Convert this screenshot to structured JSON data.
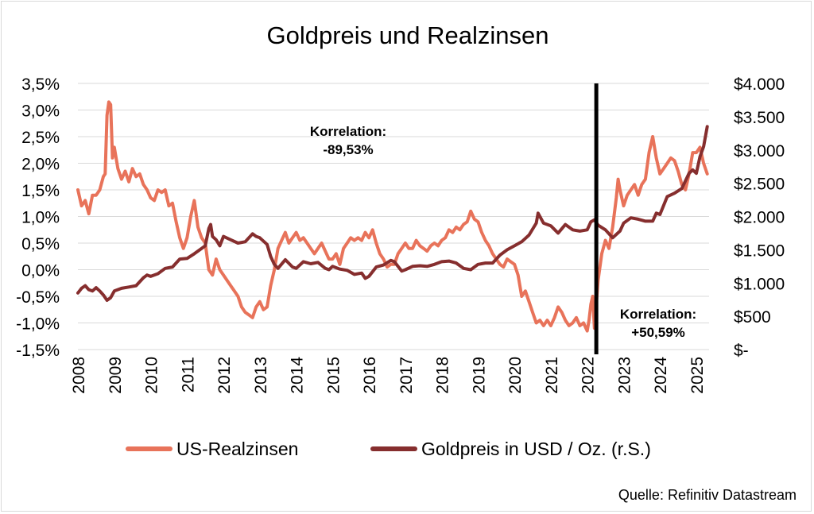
{
  "chart_data": {
    "type": "line",
    "title": "Goldpreis und Realzinsen",
    "source": "Quelle: Refinitiv Datastream",
    "x_ticks": [
      "2008",
      "2009",
      "2010",
      "2011",
      "2012",
      "2013",
      "2014",
      "2015",
      "2016",
      "2017",
      "2018",
      "2019",
      "2020",
      "2021",
      "2022",
      "2023",
      "2024",
      "2025"
    ],
    "x_range": [
      2008.0,
      2025.35
    ],
    "y_left": {
      "ticks": [
        "3,5%",
        "3,0%",
        "2,5%",
        "2,0%",
        "1,5%",
        "1,0%",
        "0,5%",
        "0,0%",
        "-0,5%",
        "-1,0%",
        "-1,5%"
      ],
      "range": [
        -1.5,
        3.5
      ],
      "unit": "%"
    },
    "y_right": {
      "ticks": [
        "$4.000",
        "$3.500",
        "$3.000",
        "$2.500",
        "$2.000",
        "$1.500",
        "$1.000",
        "$500",
        "$-"
      ],
      "range": [
        0,
        4000
      ],
      "unit": "USD"
    },
    "grid": "horizontal",
    "legend_position": "bottom",
    "vertical_marker": {
      "x": 2022.25
    },
    "annotations": [
      {
        "line1": "Korrelation:",
        "line2": "-89,53%"
      },
      {
        "line1": "Korrelation:",
        "line2": "+50,59%"
      }
    ],
    "series": [
      {
        "name": "US-Realzinsen",
        "axis": "left",
        "color": "#e8735a",
        "points": [
          [
            2008.0,
            1.5
          ],
          [
            2008.1,
            1.2
          ],
          [
            2008.2,
            1.3
          ],
          [
            2008.3,
            1.05
          ],
          [
            2008.4,
            1.4
          ],
          [
            2008.5,
            1.4
          ],
          [
            2008.6,
            1.5
          ],
          [
            2008.7,
            1.75
          ],
          [
            2008.75,
            1.8
          ],
          [
            2008.8,
            2.9
          ],
          [
            2008.85,
            3.15
          ],
          [
            2008.9,
            3.1
          ],
          [
            2008.95,
            2.1
          ],
          [
            2009.0,
            2.3
          ],
          [
            2009.1,
            1.9
          ],
          [
            2009.2,
            1.7
          ],
          [
            2009.3,
            1.85
          ],
          [
            2009.4,
            1.65
          ],
          [
            2009.5,
            1.9
          ],
          [
            2009.6,
            1.75
          ],
          [
            2009.7,
            1.8
          ],
          [
            2009.8,
            1.6
          ],
          [
            2009.9,
            1.5
          ],
          [
            2010.0,
            1.35
          ],
          [
            2010.1,
            1.3
          ],
          [
            2010.2,
            1.5
          ],
          [
            2010.3,
            1.45
          ],
          [
            2010.4,
            1.5
          ],
          [
            2010.5,
            1.2
          ],
          [
            2010.6,
            1.25
          ],
          [
            2010.7,
            0.9
          ],
          [
            2010.8,
            0.6
          ],
          [
            2010.9,
            0.4
          ],
          [
            2011.0,
            0.6
          ],
          [
            2011.1,
            1.0
          ],
          [
            2011.2,
            1.3
          ],
          [
            2011.3,
            0.8
          ],
          [
            2011.4,
            0.6
          ],
          [
            2011.5,
            0.5
          ],
          [
            2011.6,
            0.0
          ],
          [
            2011.7,
            -0.1
          ],
          [
            2011.8,
            0.2
          ],
          [
            2011.9,
            0.0
          ],
          [
            2012.0,
            -0.1
          ],
          [
            2012.1,
            -0.2
          ],
          [
            2012.2,
            -0.3
          ],
          [
            2012.3,
            -0.4
          ],
          [
            2012.4,
            -0.5
          ],
          [
            2012.5,
            -0.7
          ],
          [
            2012.6,
            -0.8
          ],
          [
            2012.7,
            -0.85
          ],
          [
            2012.8,
            -0.9
          ],
          [
            2012.9,
            -0.7
          ],
          [
            2013.0,
            -0.6
          ],
          [
            2013.1,
            -0.75
          ],
          [
            2013.2,
            -0.7
          ],
          [
            2013.3,
            -0.3
          ],
          [
            2013.4,
            0.0
          ],
          [
            2013.5,
            0.4
          ],
          [
            2013.6,
            0.55
          ],
          [
            2013.7,
            0.7
          ],
          [
            2013.8,
            0.5
          ],
          [
            2013.9,
            0.6
          ],
          [
            2014.0,
            0.7
          ],
          [
            2014.1,
            0.55
          ],
          [
            2014.2,
            0.6
          ],
          [
            2014.3,
            0.5
          ],
          [
            2014.4,
            0.4
          ],
          [
            2014.5,
            0.3
          ],
          [
            2014.6,
            0.4
          ],
          [
            2014.7,
            0.5
          ],
          [
            2014.8,
            0.35
          ],
          [
            2014.9,
            0.2
          ],
          [
            2015.0,
            0.2
          ],
          [
            2015.1,
            0.3
          ],
          [
            2015.2,
            0.1
          ],
          [
            2015.3,
            0.4
          ],
          [
            2015.4,
            0.5
          ],
          [
            2015.5,
            0.6
          ],
          [
            2015.6,
            0.55
          ],
          [
            2015.7,
            0.6
          ],
          [
            2015.8,
            0.55
          ],
          [
            2015.9,
            0.7
          ],
          [
            2016.0,
            0.6
          ],
          [
            2016.1,
            0.75
          ],
          [
            2016.2,
            0.5
          ],
          [
            2016.3,
            0.3
          ],
          [
            2016.4,
            0.2
          ],
          [
            2016.5,
            0.05
          ],
          [
            2016.6,
            0.1
          ],
          [
            2016.7,
            0.1
          ],
          [
            2016.8,
            0.3
          ],
          [
            2016.9,
            0.4
          ],
          [
            2017.0,
            0.5
          ],
          [
            2017.1,
            0.4
          ],
          [
            2017.2,
            0.4
          ],
          [
            2017.3,
            0.55
          ],
          [
            2017.4,
            0.45
          ],
          [
            2017.5,
            0.4
          ],
          [
            2017.6,
            0.35
          ],
          [
            2017.7,
            0.45
          ],
          [
            2017.8,
            0.5
          ],
          [
            2017.9,
            0.45
          ],
          [
            2018.0,
            0.55
          ],
          [
            2018.1,
            0.6
          ],
          [
            2018.2,
            0.75
          ],
          [
            2018.3,
            0.7
          ],
          [
            2018.4,
            0.8
          ],
          [
            2018.5,
            0.75
          ],
          [
            2018.6,
            0.85
          ],
          [
            2018.7,
            0.9
          ],
          [
            2018.8,
            1.1
          ],
          [
            2018.9,
            0.95
          ],
          [
            2019.0,
            0.9
          ],
          [
            2019.1,
            0.7
          ],
          [
            2019.2,
            0.55
          ],
          [
            2019.3,
            0.45
          ],
          [
            2019.4,
            0.3
          ],
          [
            2019.5,
            0.2
          ],
          [
            2019.6,
            0.1
          ],
          [
            2019.7,
            0.05
          ],
          [
            2019.8,
            0.2
          ],
          [
            2019.9,
            0.15
          ],
          [
            2020.0,
            0.1
          ],
          [
            2020.1,
            -0.1
          ],
          [
            2020.2,
            -0.5
          ],
          [
            2020.3,
            -0.4
          ],
          [
            2020.4,
            -0.6
          ],
          [
            2020.5,
            -0.8
          ],
          [
            2020.6,
            -1.0
          ],
          [
            2020.7,
            -0.95
          ],
          [
            2020.8,
            -1.05
          ],
          [
            2020.9,
            -0.95
          ],
          [
            2021.0,
            -1.05
          ],
          [
            2021.1,
            -0.9
          ],
          [
            2021.2,
            -0.7
          ],
          [
            2021.3,
            -0.8
          ],
          [
            2021.4,
            -0.95
          ],
          [
            2021.5,
            -1.05
          ],
          [
            2021.6,
            -1.0
          ],
          [
            2021.7,
            -0.9
          ],
          [
            2021.8,
            -1.05
          ],
          [
            2021.9,
            -1.0
          ],
          [
            2022.0,
            -1.15
          ],
          [
            2022.05,
            -0.95
          ],
          [
            2022.1,
            -0.65
          ],
          [
            2022.15,
            -0.5
          ],
          [
            2022.2,
            -1.1
          ],
          [
            2022.3,
            -0.2
          ],
          [
            2022.4,
            0.3
          ],
          [
            2022.5,
            0.55
          ],
          [
            2022.6,
            0.4
          ],
          [
            2022.7,
            0.8
          ],
          [
            2022.8,
            1.35
          ],
          [
            2022.85,
            1.7
          ],
          [
            2022.9,
            1.5
          ],
          [
            2023.0,
            1.2
          ],
          [
            2023.1,
            1.4
          ],
          [
            2023.2,
            1.5
          ],
          [
            2023.3,
            1.6
          ],
          [
            2023.4,
            1.4
          ],
          [
            2023.5,
            1.6
          ],
          [
            2023.6,
            1.7
          ],
          [
            2023.7,
            2.2
          ],
          [
            2023.8,
            2.5
          ],
          [
            2023.9,
            2.1
          ],
          [
            2024.0,
            1.8
          ],
          [
            2024.1,
            1.9
          ],
          [
            2024.2,
            2.0
          ],
          [
            2024.3,
            2.1
          ],
          [
            2024.4,
            2.05
          ],
          [
            2024.5,
            1.85
          ],
          [
            2024.6,
            1.6
          ],
          [
            2024.7,
            1.5
          ],
          [
            2024.8,
            1.8
          ],
          [
            2024.9,
            2.2
          ],
          [
            2025.0,
            2.2
          ],
          [
            2025.1,
            2.3
          ],
          [
            2025.2,
            2.0
          ],
          [
            2025.3,
            1.8
          ]
        ]
      },
      {
        "name": "Goldpreis in USD / Oz. (r.S.)",
        "axis": "right",
        "color": "#862e2e",
        "points": [
          [
            2008.0,
            850
          ],
          [
            2008.1,
            920
          ],
          [
            2008.2,
            960
          ],
          [
            2008.3,
            900
          ],
          [
            2008.4,
            880
          ],
          [
            2008.5,
            930
          ],
          [
            2008.6,
            880
          ],
          [
            2008.7,
            820
          ],
          [
            2008.8,
            740
          ],
          [
            2008.9,
            780
          ],
          [
            2009.0,
            880
          ],
          [
            2009.2,
            920
          ],
          [
            2009.4,
            940
          ],
          [
            2009.6,
            960
          ],
          [
            2009.8,
            1080
          ],
          [
            2009.9,
            1120
          ],
          [
            2010.0,
            1100
          ],
          [
            2010.2,
            1140
          ],
          [
            2010.4,
            1220
          ],
          [
            2010.6,
            1240
          ],
          [
            2010.8,
            1360
          ],
          [
            2011.0,
            1370
          ],
          [
            2011.2,
            1440
          ],
          [
            2011.4,
            1520
          ],
          [
            2011.5,
            1560
          ],
          [
            2011.6,
            1820
          ],
          [
            2011.65,
            1880
          ],
          [
            2011.7,
            1700
          ],
          [
            2011.8,
            1650
          ],
          [
            2011.9,
            1560
          ],
          [
            2012.0,
            1700
          ],
          [
            2012.2,
            1650
          ],
          [
            2012.4,
            1600
          ],
          [
            2012.6,
            1620
          ],
          [
            2012.8,
            1740
          ],
          [
            2012.9,
            1700
          ],
          [
            2013.0,
            1680
          ],
          [
            2013.2,
            1580
          ],
          [
            2013.3,
            1400
          ],
          [
            2013.4,
            1280
          ],
          [
            2013.5,
            1220
          ],
          [
            2013.7,
            1350
          ],
          [
            2013.9,
            1240
          ],
          [
            2014.0,
            1220
          ],
          [
            2014.2,
            1320
          ],
          [
            2014.4,
            1290
          ],
          [
            2014.6,
            1310
          ],
          [
            2014.8,
            1220
          ],
          [
            2014.9,
            1200
          ],
          [
            2015.0,
            1250
          ],
          [
            2015.2,
            1210
          ],
          [
            2015.4,
            1190
          ],
          [
            2015.6,
            1130
          ],
          [
            2015.8,
            1150
          ],
          [
            2015.9,
            1070
          ],
          [
            2016.0,
            1100
          ],
          [
            2016.2,
            1240
          ],
          [
            2016.4,
            1270
          ],
          [
            2016.6,
            1340
          ],
          [
            2016.7,
            1320
          ],
          [
            2016.9,
            1180
          ],
          [
            2017.0,
            1200
          ],
          [
            2017.2,
            1250
          ],
          [
            2017.4,
            1260
          ],
          [
            2017.6,
            1250
          ],
          [
            2017.8,
            1280
          ],
          [
            2018.0,
            1320
          ],
          [
            2018.2,
            1330
          ],
          [
            2018.4,
            1300
          ],
          [
            2018.6,
            1220
          ],
          [
            2018.8,
            1200
          ],
          [
            2019.0,
            1280
          ],
          [
            2019.2,
            1300
          ],
          [
            2019.4,
            1300
          ],
          [
            2019.6,
            1420
          ],
          [
            2019.8,
            1500
          ],
          [
            2020.0,
            1560
          ],
          [
            2020.2,
            1620
          ],
          [
            2020.4,
            1720
          ],
          [
            2020.6,
            1900
          ],
          [
            2020.65,
            2050
          ],
          [
            2020.8,
            1900
          ],
          [
            2021.0,
            1860
          ],
          [
            2021.2,
            1750
          ],
          [
            2021.4,
            1880
          ],
          [
            2021.6,
            1800
          ],
          [
            2021.8,
            1780
          ],
          [
            2022.0,
            1800
          ],
          [
            2022.1,
            1920
          ],
          [
            2022.2,
            1950
          ],
          [
            2022.3,
            1870
          ],
          [
            2022.5,
            1800
          ],
          [
            2022.7,
            1680
          ],
          [
            2022.9,
            1780
          ],
          [
            2023.0,
            1900
          ],
          [
            2023.2,
            1980
          ],
          [
            2023.4,
            1960
          ],
          [
            2023.6,
            1930
          ],
          [
            2023.8,
            1930
          ],
          [
            2023.9,
            2050
          ],
          [
            2024.0,
            2030
          ],
          [
            2024.2,
            2300
          ],
          [
            2024.4,
            2350
          ],
          [
            2024.6,
            2420
          ],
          [
            2024.8,
            2650
          ],
          [
            2024.9,
            2700
          ],
          [
            2025.0,
            2650
          ],
          [
            2025.1,
            2900
          ],
          [
            2025.2,
            3050
          ],
          [
            2025.3,
            3350
          ]
        ]
      }
    ]
  }
}
